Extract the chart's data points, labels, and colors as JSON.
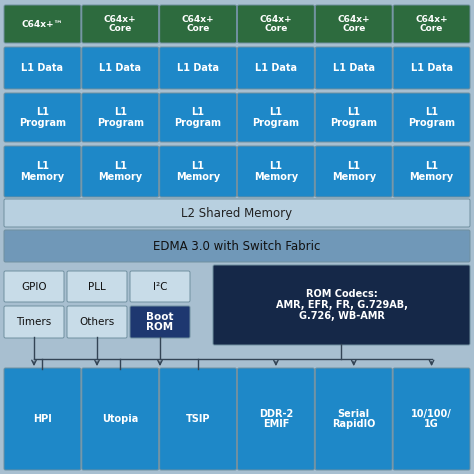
{
  "bg_color": "#a8bfd0",
  "core_color": "#2d6b3e",
  "core_text_color": "#ffffff",
  "l1_color": "#1e88c8",
  "l1_text_color": "#ffffff",
  "l2_color": "#b8d0e0",
  "l2_text_color": "#222222",
  "edma_color": "#7098b8",
  "edma_text_color": "#111111",
  "small_box_color": "#c8dce8",
  "small_box_text_color": "#111111",
  "boot_rom_color": "#1e3870",
  "boot_rom_text_color": "#ffffff",
  "rom_codecs_color": "#152848",
  "rom_codecs_text_color": "#ffffff",
  "bottom_box_color": "#1e88c8",
  "bottom_box_text_color": "#ffffff",
  "arrow_color": "#334455",
  "border_color": "#6090a8",
  "cores": [
    "C64x+™",
    "C64x+\nCore",
    "C64x+\nCore",
    "C64x+\nCore",
    "C64x+\nCore",
    "C64x+\nCore"
  ],
  "l1_data": [
    "L1 Data",
    "L1 Data",
    "L1 Data",
    "L1 Data",
    "L1 Data",
    "L1 Data"
  ],
  "l1_program": [
    "L1\nProgram",
    "L1\nProgram",
    "L1\nProgram",
    "L1\nProgram",
    "L1\nProgram",
    "L1\nProgram"
  ],
  "l1_memory": [
    "L1\nMemory",
    "L1\nMemory",
    "L1\nMemory",
    "L1\nMemory",
    "L1\nMemory",
    "L1\nMemory"
  ],
  "l2_text": "L2 Shared Memory",
  "edma_text": "EDMA 3.0 with Switch Fabric",
  "gpio_text": "GPIO",
  "timers_text": "Timers",
  "pll_text": "PLL",
  "others_text": "Others",
  "i2c_text": "I²C",
  "boot_rom_text": "Boot\nROM",
  "rom_codecs_text": "ROM Codecs:\nAMR, EFR, FR, G.729AB,\nG.726, WB-AMR",
  "bottom_boxes": [
    "HPI",
    "Utopia",
    "TSIP",
    "DDR-2\nEMIF",
    "Serial\nRapidIO",
    "10/100/\n1G"
  ]
}
